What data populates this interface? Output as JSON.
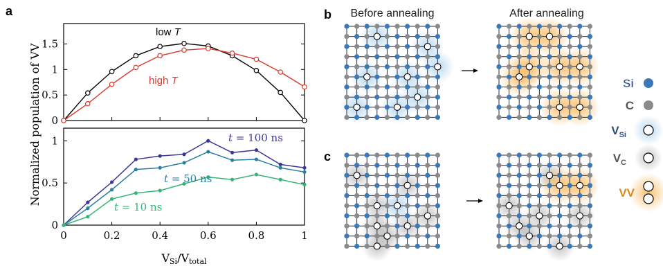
{
  "panels": {
    "a": "a",
    "b": "b",
    "c": "c"
  },
  "panel_b": {
    "before_title": "Before annealing",
    "after_title": "After annealing"
  },
  "legend": {
    "si_label": "Si",
    "c_label": "C",
    "vsi_main": "V",
    "vsi_sub": "Si",
    "vc_main": "V",
    "vc_sub": "C",
    "vv_label": "VV"
  },
  "colors": {
    "si": "#3a78b8",
    "c": "#8a8a8a",
    "black_series": "#000000",
    "red_series": "#d93a2b",
    "navy_series": "#3a3897",
    "teal_series": "#2a7fa0",
    "green_series": "#35b575",
    "vsi_glow": "#9fcbe8",
    "vc_glow": "#a0a0a0",
    "vv_glow": "#f6b24d"
  },
  "chart_data": [
    {
      "type": "line",
      "panel": "a (top)",
      "x": [
        0,
        0.1,
        0.2,
        0.3,
        0.4,
        0.5,
        0.6,
        0.7,
        0.8,
        0.9,
        1.0
      ],
      "series": [
        {
          "name": "low T",
          "values": [
            0,
            0.54,
            0.96,
            1.27,
            1.45,
            1.51,
            1.46,
            1.27,
            0.98,
            0.55,
            0
          ]
        },
        {
          "name": "high T",
          "values": [
            0,
            0.33,
            0.71,
            1.04,
            1.27,
            1.38,
            1.41,
            1.32,
            1.2,
            0.95,
            0.66
          ]
        }
      ],
      "yticks": [
        "0",
        "0.5",
        "1",
        "1.5"
      ],
      "ylim": [
        0,
        1.9
      ],
      "xlim": [
        0,
        1
      ]
    },
    {
      "type": "line",
      "panel": "a (bottom)",
      "x": [
        0,
        0.1,
        0.2,
        0.3,
        0.4,
        0.5,
        0.6,
        0.7,
        0.8,
        0.9,
        1.0
      ],
      "series": [
        {
          "name": "t = 100 ns",
          "values": [
            0,
            0.27,
            0.51,
            0.78,
            0.82,
            0.84,
            1.0,
            0.86,
            0.89,
            0.72,
            0.68
          ]
        },
        {
          "name": "t = 50 ns",
          "values": [
            0,
            0.2,
            0.42,
            0.66,
            0.68,
            0.74,
            0.87,
            0.77,
            0.78,
            0.68,
            0.63
          ]
        },
        {
          "name": "t = 10 ns",
          "values": [
            0,
            0.1,
            0.31,
            0.38,
            0.41,
            0.49,
            0.57,
            0.54,
            0.6,
            0.54,
            0.48
          ]
        }
      ],
      "yticks": [
        "0",
        "0.5",
        "1"
      ],
      "ylim": [
        0,
        1.15
      ],
      "xlim": [
        0,
        1
      ],
      "xticks": [
        "0",
        "0.2",
        "0.4",
        "0.6",
        "0.8",
        "1"
      ]
    }
  ],
  "axes": {
    "ylabel": "Normalized population of VV",
    "xlabel_main1": "V",
    "xlabel_sub1": "Si",
    "xlabel_slash": "/",
    "xlabel_main2": "V",
    "xlabel_sub2": "total"
  },
  "annotations": {
    "low_t_word": "low ",
    "low_t_var": "T",
    "high_t_word": "high ",
    "high_t_var": "T",
    "t100_var": "t",
    "t100_val": " = 100 ns",
    "t50_var": "t",
    "t50_val": " = 50 ns",
    "t10_var": "t",
    "t10_val": " = 10 ns"
  },
  "lattice_panels": [
    {
      "name": "b-before",
      "vsi": [
        [
          3,
          1
        ],
        [
          8,
          2
        ],
        [
          9,
          4
        ],
        [
          2,
          5
        ],
        [
          6,
          5
        ],
        [
          1,
          8
        ],
        [
          5,
          8
        ],
        [
          7,
          7
        ]
      ],
      "vc": [],
      "vv": []
    },
    {
      "name": "b-after",
      "vsi": [],
      "vc": [],
      "vv": [
        [
          3,
          1
        ],
        [
          5,
          1
        ],
        [
          3,
          4
        ],
        [
          2,
          5
        ],
        [
          6,
          4
        ],
        [
          8,
          4
        ],
        [
          6,
          8
        ],
        [
          8,
          8
        ]
      ]
    },
    {
      "name": "c-before",
      "vsi": [
        [
          5,
          5
        ]
      ],
      "vc": [
        [
          1,
          2
        ],
        [
          6,
          3
        ],
        [
          3,
          5
        ],
        [
          3,
          7
        ],
        [
          6,
          7
        ],
        [
          4,
          8
        ],
        [
          8,
          6
        ],
        [
          3,
          9
        ]
      ],
      "vv": []
    },
    {
      "name": "c-after",
      "vsi": [],
      "vc": [
        [
          5,
          2
        ],
        [
          1,
          5
        ],
        [
          2,
          7
        ],
        [
          3,
          8
        ],
        [
          6,
          9
        ],
        [
          8,
          6
        ],
        [
          4,
          6
        ]
      ],
      "vv": [
        [
          6,
          3
        ],
        [
          8,
          3
        ]
      ]
    }
  ]
}
